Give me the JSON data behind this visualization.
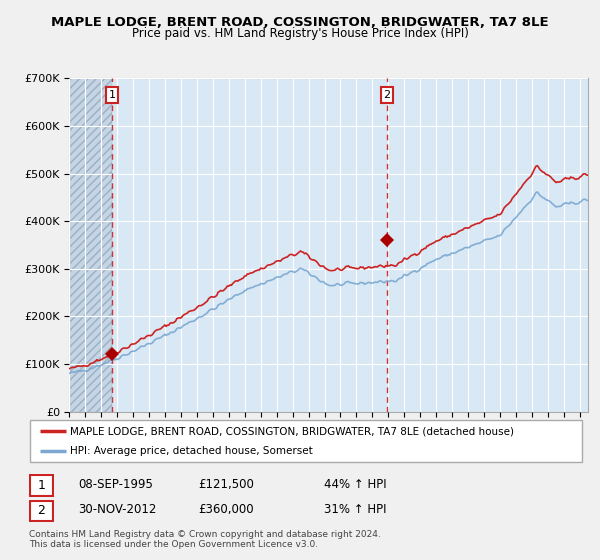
{
  "title": "MAPLE LODGE, BRENT ROAD, COSSINGTON, BRIDGWATER, TA7 8LE",
  "subtitle": "Price paid vs. HM Land Registry's House Price Index (HPI)",
  "legend_line1": "MAPLE LODGE, BRENT ROAD, COSSINGTON, BRIDGWATER, TA7 8LE (detached house)",
  "legend_line2": "HPI: Average price, detached house, Somerset",
  "footer1": "Contains HM Land Registry data © Crown copyright and database right 2024.",
  "footer2": "This data is licensed under the Open Government Licence v3.0.",
  "sale1_date": "08-SEP-1995",
  "sale1_price": "£121,500",
  "sale1_hpi": "44% ↑ HPI",
  "sale2_date": "30-NOV-2012",
  "sale2_price": "£360,000",
  "sale2_hpi": "31% ↑ HPI",
  "sale1_x": 1995.69,
  "sale1_y": 121500,
  "sale2_x": 2012.92,
  "sale2_y": 360000,
  "hpi_color": "#7ba7d0",
  "price_color": "#cc2222",
  "sale_marker_color": "#aa0000",
  "bg_color": "#d8e8f5",
  "hatch_bg_color": "#c5d5e5",
  "grid_color": "#ffffff",
  "vline_color": "#cc3333",
  "box_edge_color": "#cc2222",
  "ylim": [
    0,
    700000
  ],
  "xlim_start": 1993.0,
  "xlim_end": 2025.5,
  "yticks": [
    0,
    100000,
    200000,
    300000,
    400000,
    500000,
    600000,
    700000
  ],
  "ylabels": [
    "£0",
    "£100K",
    "£200K",
    "£300K",
    "£400K",
    "£500K",
    "£600K",
    "£700K"
  ],
  "fig_bg": "#f0f0f0"
}
